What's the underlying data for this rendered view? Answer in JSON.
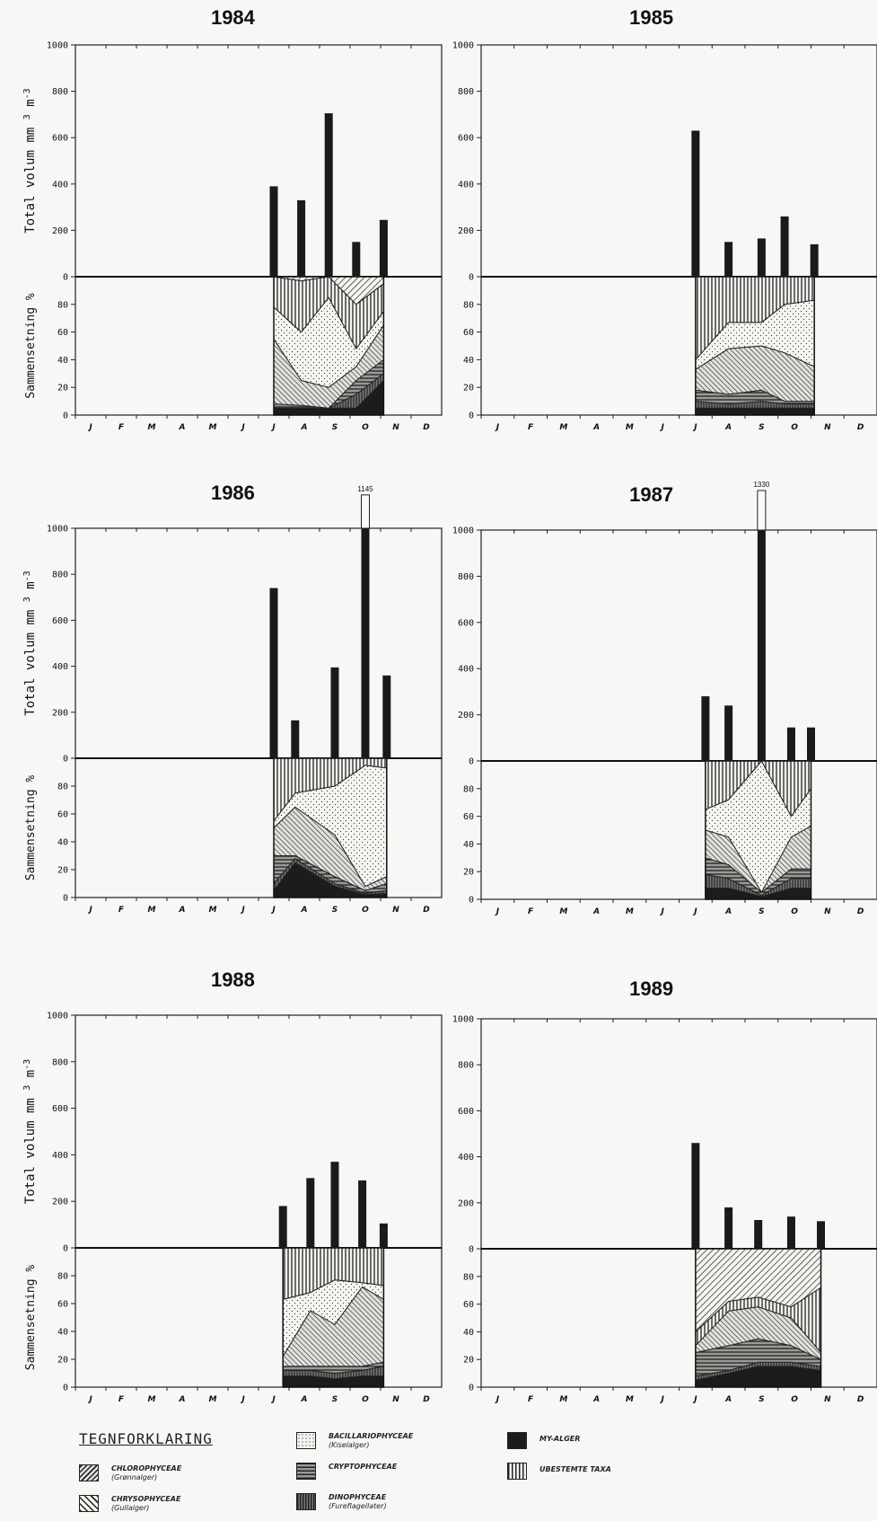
{
  "months": [
    "J",
    "F",
    "M",
    "A",
    "M",
    "J",
    "J",
    "A",
    "S",
    "O",
    "N",
    "D"
  ],
  "axis_labels": {
    "top_ylabel": "Total volum mm",
    "top_ylabel_unit_exp1": "3",
    "top_ylabel_unit_m": "m",
    "top_ylabel_unit_exp2": "-3",
    "bottom_ylabel": "Sammensetning %"
  },
  "legend": {
    "title": "TEGNFORKLARING",
    "items": [
      {
        "key": "chlorophyceae",
        "name": "CHLOROPHYCEAE",
        "sub": "(Grønnalger)"
      },
      {
        "key": "chrysophyceae",
        "name": "CHRYSOPHYCEAE",
        "sub": "(Gullalger)"
      },
      {
        "key": "bacillariophyceae",
        "name": "BACILLARIOPHYCEAE",
        "sub": "(Kiselalger)"
      },
      {
        "key": "cryptophyceae",
        "name": "CRYPTOPHYCEAE",
        "sub": ""
      },
      {
        "key": "dinophyceae",
        "name": "DINOPHYCEAE",
        "sub": "(Fureflagellater)"
      },
      {
        "key": "my_alger",
        "name": "MY-ALGER",
        "sub": ""
      },
      {
        "key": "ubestemte",
        "name": "UBESTEMTE TAXA",
        "sub": ""
      }
    ]
  },
  "chart_data": [
    {
      "type": "bar",
      "title": "1984",
      "ylim": [
        0,
        1000
      ],
      "yticks": [
        "0",
        "200",
        "400",
        "600",
        "800",
        "1000"
      ],
      "pct_ticks": [
        "0",
        "20",
        "40",
        "60",
        "80"
      ],
      "x_month_pos": [
        6.0,
        6.9,
        7.8,
        8.7,
        9.6
      ],
      "total_volume": [
        390,
        330,
        705,
        150,
        245
      ],
      "composition_boundaries": [
        [
          0,
          0,
          0,
          0,
          0
        ],
        [
          5,
          5,
          5,
          5,
          25
        ],
        [
          5,
          5,
          5,
          15,
          30
        ],
        [
          8,
          7,
          5,
          25,
          40
        ],
        [
          55,
          25,
          20,
          35,
          65
        ],
        [
          78,
          60,
          85,
          48,
          75
        ],
        [
          100,
          97,
          100,
          80,
          95
        ],
        [
          100,
          100,
          100,
          100,
          100
        ]
      ]
    },
    {
      "type": "bar",
      "title": "1985",
      "ylim": [
        0,
        1000
      ],
      "yticks": [
        "0",
        "200",
        "400",
        "600",
        "800",
        "1000"
      ],
      "pct_ticks": [
        "0",
        "20",
        "40",
        "60",
        "80"
      ],
      "x_month_pos": [
        6.0,
        7.0,
        8.0,
        8.7,
        9.6
      ],
      "total_volume": [
        630,
        150,
        165,
        260,
        140
      ],
      "composition_boundaries": [
        [
          0,
          0,
          0,
          0,
          0
        ],
        [
          5,
          5,
          5,
          5,
          5
        ],
        [
          10,
          8,
          10,
          8,
          8
        ],
        [
          18,
          15,
          18,
          10,
          10
        ],
        [
          33,
          48,
          50,
          45,
          35
        ],
        [
          40,
          67,
          67,
          80,
          83
        ],
        [
          100,
          100,
          100,
          100,
          100
        ],
        [
          100,
          100,
          100,
          100,
          100
        ]
      ]
    },
    {
      "type": "bar",
      "title": "1986",
      "ylim": [
        0,
        1000
      ],
      "yticks": [
        "0",
        "200",
        "400",
        "600",
        "800",
        "1000"
      ],
      "pct_ticks": [
        "0",
        "20",
        "40",
        "60",
        "80"
      ],
      "x_month_pos": [
        6.0,
        6.7,
        8.0,
        9.0,
        9.7
      ],
      "total_volume": [
        740,
        165,
        395,
        1145,
        360
      ],
      "overflow_labels": [
        "",
        "",
        "",
        "1145",
        ""
      ],
      "composition_boundaries": [
        [
          0,
          0,
          0,
          0,
          0
        ],
        [
          5,
          25,
          8,
          2,
          3
        ],
        [
          10,
          28,
          10,
          3,
          5
        ],
        [
          30,
          30,
          15,
          5,
          10
        ],
        [
          50,
          65,
          45,
          8,
          15
        ],
        [
          55,
          75,
          80,
          95,
          93
        ],
        [
          100,
          100,
          100,
          100,
          100
        ],
        [
          100,
          100,
          100,
          100,
          100
        ]
      ]
    },
    {
      "type": "bar",
      "title": "1987",
      "ylim": [
        0,
        1000
      ],
      "yticks": [
        "0",
        "200",
        "400",
        "600",
        "800",
        "1000"
      ],
      "pct_ticks": [
        "0",
        "20",
        "40",
        "60",
        "80"
      ],
      "x_month_pos": [
        6.3,
        7.0,
        8.0,
        8.9,
        9.5
      ],
      "total_volume": [
        280,
        240,
        1330,
        145,
        145
      ],
      "overflow_labels": [
        "",
        "",
        "1330",
        "",
        ""
      ],
      "composition_boundaries": [
        [
          0,
          0,
          0,
          0,
          0
        ],
        [
          8,
          8,
          2,
          8,
          8
        ],
        [
          18,
          15,
          3,
          15,
          15
        ],
        [
          30,
          25,
          5,
          22,
          22
        ],
        [
          50,
          45,
          5,
          45,
          53
        ],
        [
          65,
          72,
          100,
          60,
          80
        ],
        [
          100,
          100,
          100,
          100,
          100
        ],
        [
          100,
          100,
          100,
          100,
          100
        ]
      ]
    },
    {
      "type": "bar",
      "title": "1988",
      "ylim": [
        0,
        1000
      ],
      "yticks": [
        "0",
        "200",
        "400",
        "600",
        "800",
        "1000"
      ],
      "pct_ticks": [
        "0",
        "20",
        "40",
        "60",
        "80"
      ],
      "x_month_pos": [
        6.3,
        7.2,
        8.0,
        8.9,
        9.6
      ],
      "total_volume": [
        180,
        300,
        370,
        290,
        105
      ],
      "composition_boundaries": [
        [
          0,
          0,
          0,
          0,
          0
        ],
        [
          8,
          8,
          6,
          8,
          8
        ],
        [
          12,
          12,
          10,
          12,
          15
        ],
        [
          15,
          15,
          15,
          15,
          18
        ],
        [
          22,
          55,
          45,
          72,
          63
        ],
        [
          63,
          68,
          77,
          75,
          73
        ],
        [
          100,
          100,
          100,
          100,
          100
        ],
        [
          100,
          100,
          100,
          100,
          100
        ]
      ]
    },
    {
      "type": "bar",
      "title": "1989",
      "ylim": [
        0,
        1000
      ],
      "yticks": [
        "0",
        "200",
        "400",
        "600",
        "800",
        "1000"
      ],
      "pct_ticks": [
        "0",
        "20",
        "40",
        "60",
        "80"
      ],
      "x_month_pos": [
        6.0,
        7.0,
        7.9,
        8.9,
        9.8
      ],
      "total_volume": [
        460,
        180,
        125,
        140,
        120
      ],
      "composition_boundaries": [
        [
          0,
          0,
          0,
          0,
          0
        ],
        [
          5,
          10,
          15,
          15,
          12
        ],
        [
          8,
          12,
          18,
          18,
          15
        ],
        [
          25,
          30,
          35,
          30,
          20
        ],
        [
          30,
          55,
          58,
          50,
          25
        ],
        [
          30,
          55,
          58,
          50,
          25
        ],
        [
          40,
          62,
          65,
          58,
          72
        ],
        [
          100,
          100,
          100,
          100,
          100
        ]
      ]
    }
  ]
}
